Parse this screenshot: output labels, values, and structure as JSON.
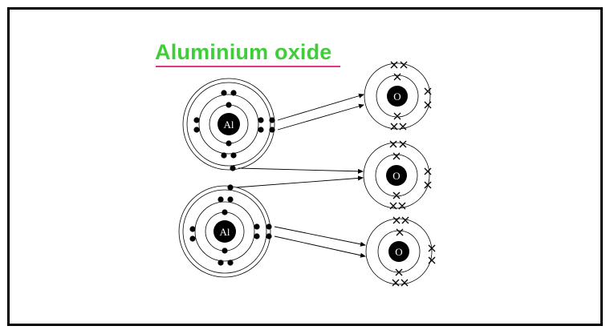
{
  "title": "Aluminium oxide",
  "colors": {
    "title": "#3fcd3a",
    "underline": "#e0348a",
    "nucleus": "#000000",
    "electron": "#000000",
    "shell": "#000000"
  },
  "atoms": {
    "aluminium": {
      "symbol": "Al",
      "count": 2,
      "electron_marker": "dot",
      "shells": [
        2,
        8,
        3
      ]
    },
    "oxygen": {
      "symbol": "O",
      "count": 3,
      "electron_marker": "cross",
      "shells": [
        2,
        6
      ]
    }
  },
  "labels": {
    "al1": "Al",
    "al2": "Al",
    "o1": "O",
    "o2": "O",
    "o3": "O"
  }
}
